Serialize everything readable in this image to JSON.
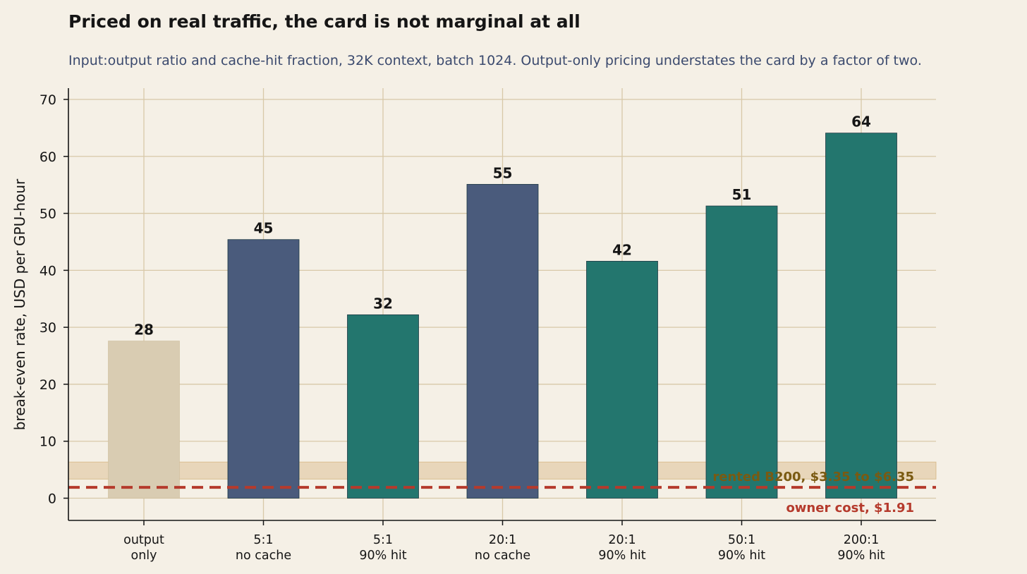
{
  "chart_data": {
    "type": "bar",
    "title": "Priced on real traffic, the card is not marginal at all",
    "subtitle": "Input:output ratio and cache-hit fraction, 32K context, batch 1024. Output-only pricing understates the card by a factor of two.",
    "xlabel": "",
    "ylabel": "break-even rate, USD per GPU-hour",
    "ylim": [
      -4,
      72
    ],
    "yticks": [
      0,
      10,
      20,
      30,
      40,
      50,
      60,
      70
    ],
    "grid": true,
    "categories": [
      [
        "output",
        "only"
      ],
      [
        "5:1",
        "no cache"
      ],
      [
        "5:1",
        "90% hit"
      ],
      [
        "20:1",
        "no cache"
      ],
      [
        "20:1",
        "90% hit"
      ],
      [
        "50:1",
        "90% hit"
      ],
      [
        "200:1",
        "90% hit"
      ]
    ],
    "values": [
      27.6,
      45.4,
      32.2,
      55.1,
      41.6,
      51.3,
      64.1
    ],
    "value_labels": [
      "28",
      "45",
      "32",
      "55",
      "42",
      "51",
      "64"
    ],
    "bar_colors": [
      "#d9ccb2",
      "#4a5b7c",
      "#23766e",
      "#4a5b7c",
      "#23766e",
      "#23766e",
      "#23766e"
    ],
    "reference_band": {
      "label": "rented B200, $3.35 to $6.35",
      "from": 3.35,
      "to": 6.35,
      "color": "#dcc195",
      "label_color": "#7a5a12"
    },
    "reference_line": {
      "label": "owner cost, $1.91",
      "value": 1.91,
      "color": "#b53a2c"
    }
  }
}
